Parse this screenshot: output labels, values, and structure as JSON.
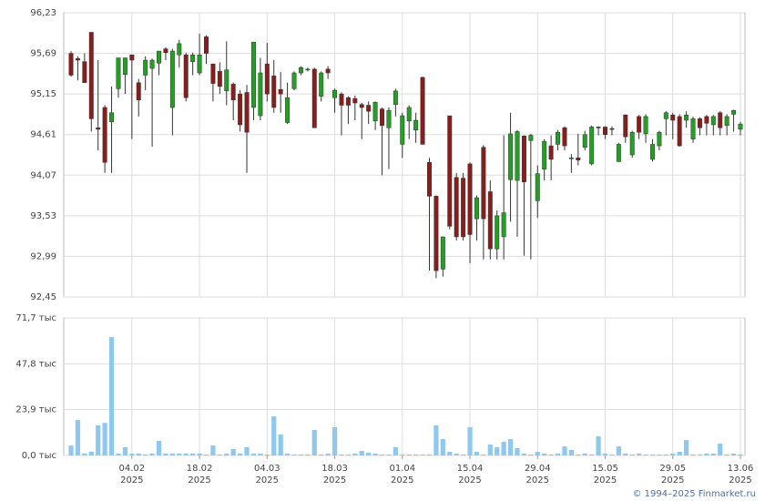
{
  "chart_data": [
    {
      "type": "candlestick",
      "up_color": "#22a022",
      "down_color": "#8b1c1c",
      "ylim": [
        92.45,
        96.23
      ],
      "yticks": [
        {
          "value": 92.45,
          "label": "92,45"
        },
        {
          "value": 92.99,
          "label": "92,99"
        },
        {
          "value": 93.53,
          "label": "93,53"
        },
        {
          "value": 94.07,
          "label": "94,07"
        },
        {
          "value": 94.61,
          "label": "94,61"
        },
        {
          "value": 95.15,
          "label": "95,15"
        },
        {
          "value": 95.69,
          "label": "95,69"
        },
        {
          "value": 96.23,
          "label": "96,23"
        }
      ],
      "grid": true,
      "open": [
        95.69,
        95.62,
        95.58,
        95.97,
        94.7,
        94.97,
        94.78,
        95.22,
        95.41,
        95.67,
        95.3,
        95.4,
        95.49,
        95.56,
        95.75,
        94.97,
        95.67,
        95.67,
        95.58,
        95.43,
        95.91,
        95.55,
        95.45,
        95.19,
        95.28,
        95.15,
        95.17,
        94.97,
        94.86,
        95.55,
        95.39,
        95.21,
        94.77,
        95.22,
        95.43,
        95.48,
        95.48,
        95.12,
        95.48,
        95.1,
        95.15,
        95.1,
        95.09,
        95.01,
        95.0,
        94.79,
        94.95,
        94.7,
        95.01,
        94.48,
        94.79,
        94.67,
        95.37,
        94.24,
        93.79,
        92.82,
        94.86,
        94.04,
        94.03,
        94.22,
        93.49,
        94.44,
        93.85,
        93.09,
        93.25,
        94.01,
        94.0,
        94.59,
        94.53,
        93.73,
        94.15,
        94.46,
        94.48,
        94.7,
        94.3,
        94.3,
        94.44,
        94.22,
        94.71,
        94.71,
        94.69,
        94.25,
        94.87,
        94.34,
        94.85,
        94.62,
        94.28,
        94.46,
        94.82,
        94.87,
        94.85,
        94.8,
        94.55,
        94.82,
        94.85,
        94.74,
        94.9,
        94.73,
        94.88,
        94.68
      ],
      "high": [
        95.72,
        95.65,
        95.69,
        95.97,
        95.6,
        95.0,
        95.25,
        95.63,
        95.63,
        95.67,
        95.35,
        95.65,
        95.62,
        95.72,
        95.77,
        95.75,
        95.87,
        95.7,
        95.7,
        95.95,
        95.93,
        95.55,
        95.57,
        95.85,
        95.3,
        95.2,
        95.27,
        95.84,
        95.63,
        95.83,
        95.6,
        95.44,
        95.3,
        95.45,
        95.52,
        95.5,
        95.5,
        95.45,
        95.52,
        95.22,
        95.17,
        95.12,
        95.13,
        95.03,
        95.05,
        95.05,
        94.97,
        94.97,
        95.22,
        94.9,
        95.0,
        94.9,
        95.38,
        94.3,
        93.8,
        93.25,
        94.86,
        94.1,
        94.1,
        94.24,
        93.8,
        94.47,
        94.0,
        93.6,
        94.6,
        94.9,
        94.67,
        94.6,
        94.62,
        94.2,
        94.55,
        94.6,
        94.67,
        94.72,
        94.35,
        94.62,
        94.66,
        94.73,
        94.72,
        94.72,
        94.72,
        94.5,
        94.88,
        94.66,
        94.87,
        94.88,
        94.55,
        94.66,
        94.92,
        94.9,
        94.88,
        94.92,
        94.85,
        94.84,
        94.87,
        94.87,
        94.92,
        94.88,
        94.94,
        94.78
      ],
      "low": [
        95.38,
        95.33,
        95.3,
        94.65,
        94.4,
        94.1,
        94.1,
        95.1,
        95.15,
        94.55,
        94.85,
        95.2,
        94.45,
        95.4,
        95.6,
        94.6,
        95.5,
        95.05,
        95.4,
        95.4,
        95.55,
        95.05,
        95.15,
        95.0,
        94.8,
        94.65,
        94.1,
        94.8,
        94.8,
        95.05,
        94.9,
        94.9,
        94.75,
        95.2,
        95.4,
        95.45,
        94.7,
        95.05,
        95.35,
        94.9,
        94.6,
        94.75,
        94.8,
        94.55,
        94.75,
        94.67,
        94.07,
        94.15,
        94.85,
        94.3,
        94.55,
        94.5,
        94.48,
        92.8,
        92.7,
        92.72,
        93.35,
        93.2,
        93.2,
        92.9,
        93.2,
        92.95,
        92.95,
        92.95,
        92.95,
        93.45,
        93.25,
        93.0,
        92.95,
        93.5,
        94.0,
        94.0,
        94.4,
        94.4,
        94.1,
        94.2,
        94.4,
        94.2,
        94.6,
        94.55,
        94.6,
        94.25,
        94.5,
        94.3,
        94.55,
        94.5,
        94.25,
        94.4,
        94.6,
        94.55,
        94.45,
        94.7,
        94.5,
        94.6,
        94.6,
        94.6,
        94.6,
        94.6,
        94.65,
        94.6
      ],
      "close": [
        95.4,
        95.6,
        95.3,
        94.82,
        94.68,
        94.24,
        94.9,
        95.63,
        95.63,
        95.6,
        95.07,
        95.6,
        95.6,
        95.72,
        95.7,
        95.72,
        95.82,
        95.1,
        95.67,
        95.67,
        95.69,
        95.29,
        95.25,
        95.47,
        95.07,
        94.74,
        94.64,
        95.84,
        95.43,
        95.15,
        94.97,
        95.15,
        95.1,
        95.43,
        95.5,
        95.48,
        94.7,
        95.43,
        95.43,
        95.2,
        95.0,
        95.0,
        95.03,
        94.97,
        94.92,
        95.04,
        94.73,
        94.93,
        95.19,
        94.86,
        94.97,
        94.8,
        94.48,
        93.79,
        92.8,
        93.25,
        93.39,
        93.25,
        93.25,
        93.28,
        93.77,
        93.49,
        93.09,
        93.53,
        93.57,
        94.62,
        94.65,
        93.98,
        94.6,
        94.09,
        94.52,
        94.28,
        94.64,
        94.46,
        94.3,
        94.27,
        94.61,
        94.71,
        94.7,
        94.61,
        94.68,
        94.48,
        94.58,
        94.64,
        94.64,
        94.85,
        94.48,
        94.64,
        94.9,
        94.8,
        94.46,
        94.87,
        94.82,
        94.7,
        94.76,
        94.85,
        94.7,
        94.85,
        94.93,
        94.75
      ]
    },
    {
      "type": "bar",
      "color": "#8ec8ee",
      "ylim": [
        0,
        71.7
      ],
      "yticks": [
        {
          "value": 0,
          "label": "0,0 тыс"
        },
        {
          "value": 23.9,
          "label": "23,9 тыс"
        },
        {
          "value": 47.8,
          "label": "47,8 тыс"
        },
        {
          "value": 71.7,
          "label": "71,7 тыс"
        }
      ],
      "grid": true,
      "categories": [
        null,
        null,
        null,
        null,
        null,
        null,
        null,
        null,
        null,
        "04.02",
        null,
        null,
        null,
        null,
        null,
        null,
        null,
        null,
        null,
        "18.02",
        null,
        null,
        null,
        null,
        null,
        null,
        null,
        null,
        null,
        "04.03",
        null,
        null,
        null,
        null,
        null,
        null,
        null,
        null,
        null,
        "18.03",
        null,
        null,
        null,
        null,
        null,
        null,
        null,
        null,
        null,
        "01.04",
        null,
        null,
        null,
        null,
        null,
        null,
        null,
        null,
        null,
        "15.04",
        null,
        null,
        null,
        null,
        null,
        null,
        null,
        null,
        null,
        "29.04",
        null,
        null,
        null,
        null,
        null,
        null,
        null,
        null,
        null,
        "15.05",
        null,
        null,
        null,
        null,
        null,
        null,
        null,
        null,
        null,
        "29.05",
        null,
        null,
        null,
        null,
        null,
        null,
        null,
        null,
        null,
        "13.06"
      ],
      "x_year": "2025",
      "values": [
        5.2,
        18.5,
        1,
        2,
        15.7,
        17,
        61.7,
        1,
        4.3,
        1,
        1,
        0.5,
        1,
        7.6,
        1,
        1,
        1,
        1,
        1,
        1,
        0.5,
        5.2,
        0.5,
        1,
        3.3,
        1,
        4.3,
        1,
        1,
        0.5,
        20.4,
        11,
        1,
        0.5,
        0.5,
        0.5,
        13.3,
        0.5,
        1,
        14.7,
        0.5,
        0.5,
        1,
        2.4,
        1.5,
        1,
        0.5,
        0.5,
        4.3,
        0.5,
        0.5,
        0.5,
        0.5,
        0.5,
        15.7,
        8.5,
        1.9,
        1,
        0.5,
        14.7,
        1.9,
        0.5,
        5.7,
        4.3,
        7.1,
        8.5,
        3.8,
        1,
        0.5,
        1.9,
        1,
        0.5,
        1,
        4.7,
        2.9,
        0.5,
        1,
        0.5,
        10,
        1,
        0.5,
        4.7,
        1,
        0.5,
        1,
        0.5,
        0.5,
        0.5,
        0.5,
        1,
        1.9,
        8,
        0.5,
        0.5,
        1,
        1,
        6.2,
        0.5,
        1,
        0.5
      ]
    }
  ],
  "credit": "© 1994–2025 Finmarket.ru"
}
